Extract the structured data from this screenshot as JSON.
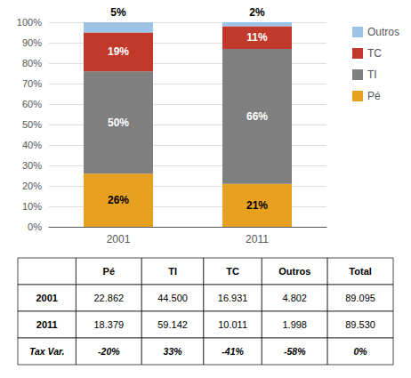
{
  "chart_data": {
    "type": "bar",
    "stacked": true,
    "data_labels": true,
    "grid": true,
    "legend": "upper right",
    "categories": [
      "2001",
      "2011"
    ],
    "series": [
      {
        "name": "Pé",
        "color": "#E8A020",
        "values": [
          26,
          21
        ],
        "value_labels": [
          "26%",
          "21%"
        ]
      },
      {
        "name": "TI",
        "color": "#7F7F7F",
        "values": [
          50,
          66
        ],
        "value_labels": [
          "50%",
          "66%"
        ]
      },
      {
        "name": "TC",
        "color": "#C0392B",
        "values": [
          19,
          11
        ],
        "value_labels": [
          "19%",
          "11%"
        ]
      },
      {
        "name": "Outros",
        "color": "#9DC3E6",
        "values": [
          5,
          2
        ],
        "value_labels": [
          "5%",
          "2%"
        ]
      }
    ],
    "ylim": [
      0,
      100
    ],
    "yticks": [
      {
        "value": 0,
        "label": "0%"
      },
      {
        "value": 10,
        "label": "10%"
      },
      {
        "value": 20,
        "label": "20%"
      },
      {
        "value": 30,
        "label": "30%"
      },
      {
        "value": 40,
        "label": "40%"
      },
      {
        "value": 50,
        "label": "50%"
      },
      {
        "value": 60,
        "label": "60%"
      },
      {
        "value": 70,
        "label": "70%"
      },
      {
        "value": 80,
        "label": "80%"
      },
      {
        "value": 90,
        "label": "90%"
      },
      {
        "value": 100,
        "label": "100%"
      }
    ],
    "table": {
      "headers": [
        null,
        "Pé",
        "TI",
        "TC",
        "Outros",
        "Total"
      ],
      "rows": [
        [
          "2001",
          "22.862",
          "44.500",
          "16.931",
          "4.802",
          "89.095"
        ],
        [
          "2011",
          "18.379",
          "59.142",
          "10.011",
          "1.998",
          "89.530"
        ],
        [
          "Tax Var.",
          "-20%",
          "33%",
          "-41%",
          "-58%",
          "0%"
        ]
      ]
    }
  }
}
